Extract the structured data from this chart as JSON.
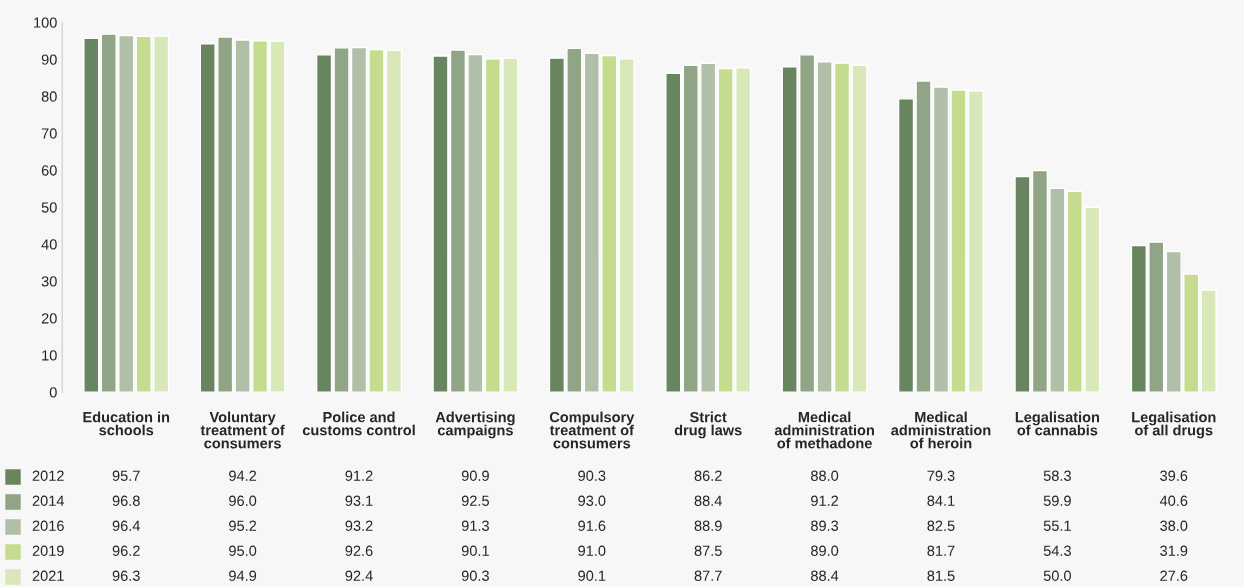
{
  "chart_data": {
    "type": "bar",
    "categories": [
      "Education in\nschools",
      "Voluntary\ntreatment of\nconsumers",
      "Police and\ncustoms control",
      "Advertising\ncampaigns",
      "Compulsory\ntreatment of\nconsumers",
      "Strict\ndrug laws",
      "Medical\nadministration\nof methadone",
      "Medical\nadministration\nof heroin",
      "Legalisation\nof cannabis",
      "Legalisation\nof all drugs"
    ],
    "series": [
      {
        "name": "2012",
        "color": "#68855f",
        "values": [
          95.7,
          94.2,
          91.2,
          90.9,
          90.3,
          86.2,
          88.0,
          79.3,
          58.3,
          39.6
        ],
        "value_labels": [
          "95.7",
          "94.2",
          "91.2",
          "90.9",
          "90.3",
          "86.2",
          "88.0",
          "79.3",
          "58.3",
          "39.6"
        ]
      },
      {
        "name": "2014",
        "color": "#8fa585",
        "values": [
          96.8,
          96.0,
          93.1,
          92.5,
          93.0,
          88.4,
          91.2,
          84.1,
          59.9,
          40.6
        ],
        "value_labels": [
          "96.8",
          "96.0",
          "93.1",
          "92.5",
          "93.0",
          "88.4",
          "91.2",
          "84.1",
          "59.9",
          "40.6"
        ]
      },
      {
        "name": "2016",
        "color": "#b0bfa8",
        "values": [
          96.4,
          95.2,
          93.2,
          91.3,
          91.6,
          88.9,
          89.3,
          82.5,
          55.1,
          38.0
        ],
        "value_labels": [
          "96.4",
          "95.2",
          "93.2",
          "91.3",
          "91.6",
          "88.9",
          "89.3",
          "82.5",
          "55.1",
          "38.0"
        ]
      },
      {
        "name": "2019",
        "color": "#c5dc8f",
        "values": [
          96.2,
          95.0,
          92.6,
          90.1,
          91.0,
          87.5,
          89.0,
          81.7,
          54.3,
          31.9
        ],
        "value_labels": [
          "96.2",
          "95.0",
          "92.6",
          "90.1",
          "91.0",
          "87.5",
          "89.0",
          "81.7",
          "54.3",
          "31.9"
        ]
      },
      {
        "name": "2021",
        "color": "#d9e8b8",
        "values": [
          96.3,
          94.9,
          92.4,
          90.3,
          90.1,
          87.7,
          88.4,
          81.5,
          50.0,
          27.6
        ],
        "value_labels": [
          "96.3",
          "94.9",
          "92.4",
          "90.3",
          "90.1",
          "87.7",
          "88.4",
          "81.5",
          "50.0",
          "27.6"
        ]
      }
    ],
    "ylim": [
      0,
      100
    ],
    "yticks": [
      0,
      10,
      20,
      30,
      40,
      50,
      60,
      70,
      80,
      90,
      100
    ],
    "grid": false,
    "legend": "bottom"
  }
}
